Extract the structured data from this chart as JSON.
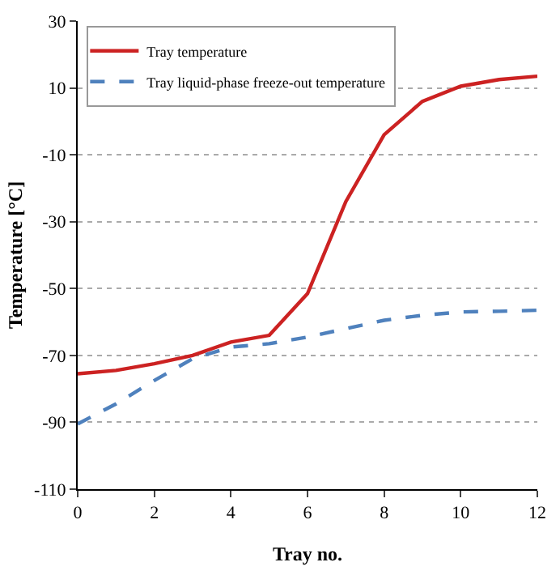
{
  "chart_data": {
    "type": "line",
    "xlabel": "Tray no.",
    "ylabel": "Temperature [°C]",
    "x": [
      0,
      1,
      2,
      3,
      4,
      5,
      6,
      7,
      8,
      9,
      10,
      11,
      12
    ],
    "series": [
      {
        "name": "Tray temperature",
        "color": "#cc2222",
        "line_style": "solid",
        "values": [
          -75.5,
          -74.5,
          -72.5,
          -70,
          -66,
          -64,
          -51.5,
          -24,
          -4,
          6,
          10.5,
          12.5,
          13.5
        ]
      },
      {
        "name": "Tray liquid-phase freeze-out temperature",
        "color": "#4f81bd",
        "line_style": "dashed",
        "values": [
          -90.5,
          -84.5,
          -77.5,
          -71,
          -67.5,
          -66.5,
          -64.5,
          -62,
          -59.5,
          -58,
          -57,
          -56.8,
          -56.5
        ]
      }
    ],
    "xlim": [
      0,
      12
    ],
    "xticks": [
      0,
      2,
      4,
      6,
      8,
      10,
      12
    ],
    "ylim": [
      -110,
      30
    ],
    "yticks": [
      -110,
      -90,
      -70,
      -50,
      -30,
      -10,
      10,
      30
    ],
    "grid": "y",
    "legend": "top left",
    "marker": "none"
  }
}
